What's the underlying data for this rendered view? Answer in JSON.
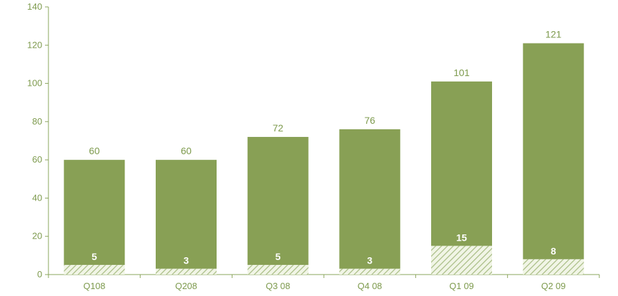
{
  "chart_data": {
    "type": "bar",
    "stacked": true,
    "categories": [
      "Q108",
      "Q208",
      "Q3 08",
      "Q4 08",
      "Q1 09",
      "Q2 09"
    ],
    "totals": [
      60,
      60,
      72,
      76,
      101,
      121
    ],
    "series": [
      {
        "values": [
          5,
          3,
          5,
          3,
          15,
          8
        ],
        "pattern": "hatched"
      },
      {
        "values": [
          55,
          57,
          67,
          73,
          86,
          113
        ],
        "pattern": "solid"
      }
    ],
    "bottom_labels": [
      "5",
      "3",
      "5",
      "3",
      "15",
      "8"
    ],
    "total_labels": [
      "60",
      "60",
      "72",
      "76",
      "101",
      "121"
    ],
    "y_ticks": [
      "0",
      "20",
      "40",
      "60",
      "80",
      "100",
      "120",
      "140"
    ],
    "ylim": [
      0,
      140
    ],
    "grid": false,
    "legend": "none",
    "colors": {
      "bar": "#88a055",
      "hatch_bg": "#f1f5e6",
      "hatch_line": "#a9bd85",
      "axis": "#8aa45b",
      "text": "#7d9a4d",
      "inner_label": "#ffffff"
    }
  }
}
